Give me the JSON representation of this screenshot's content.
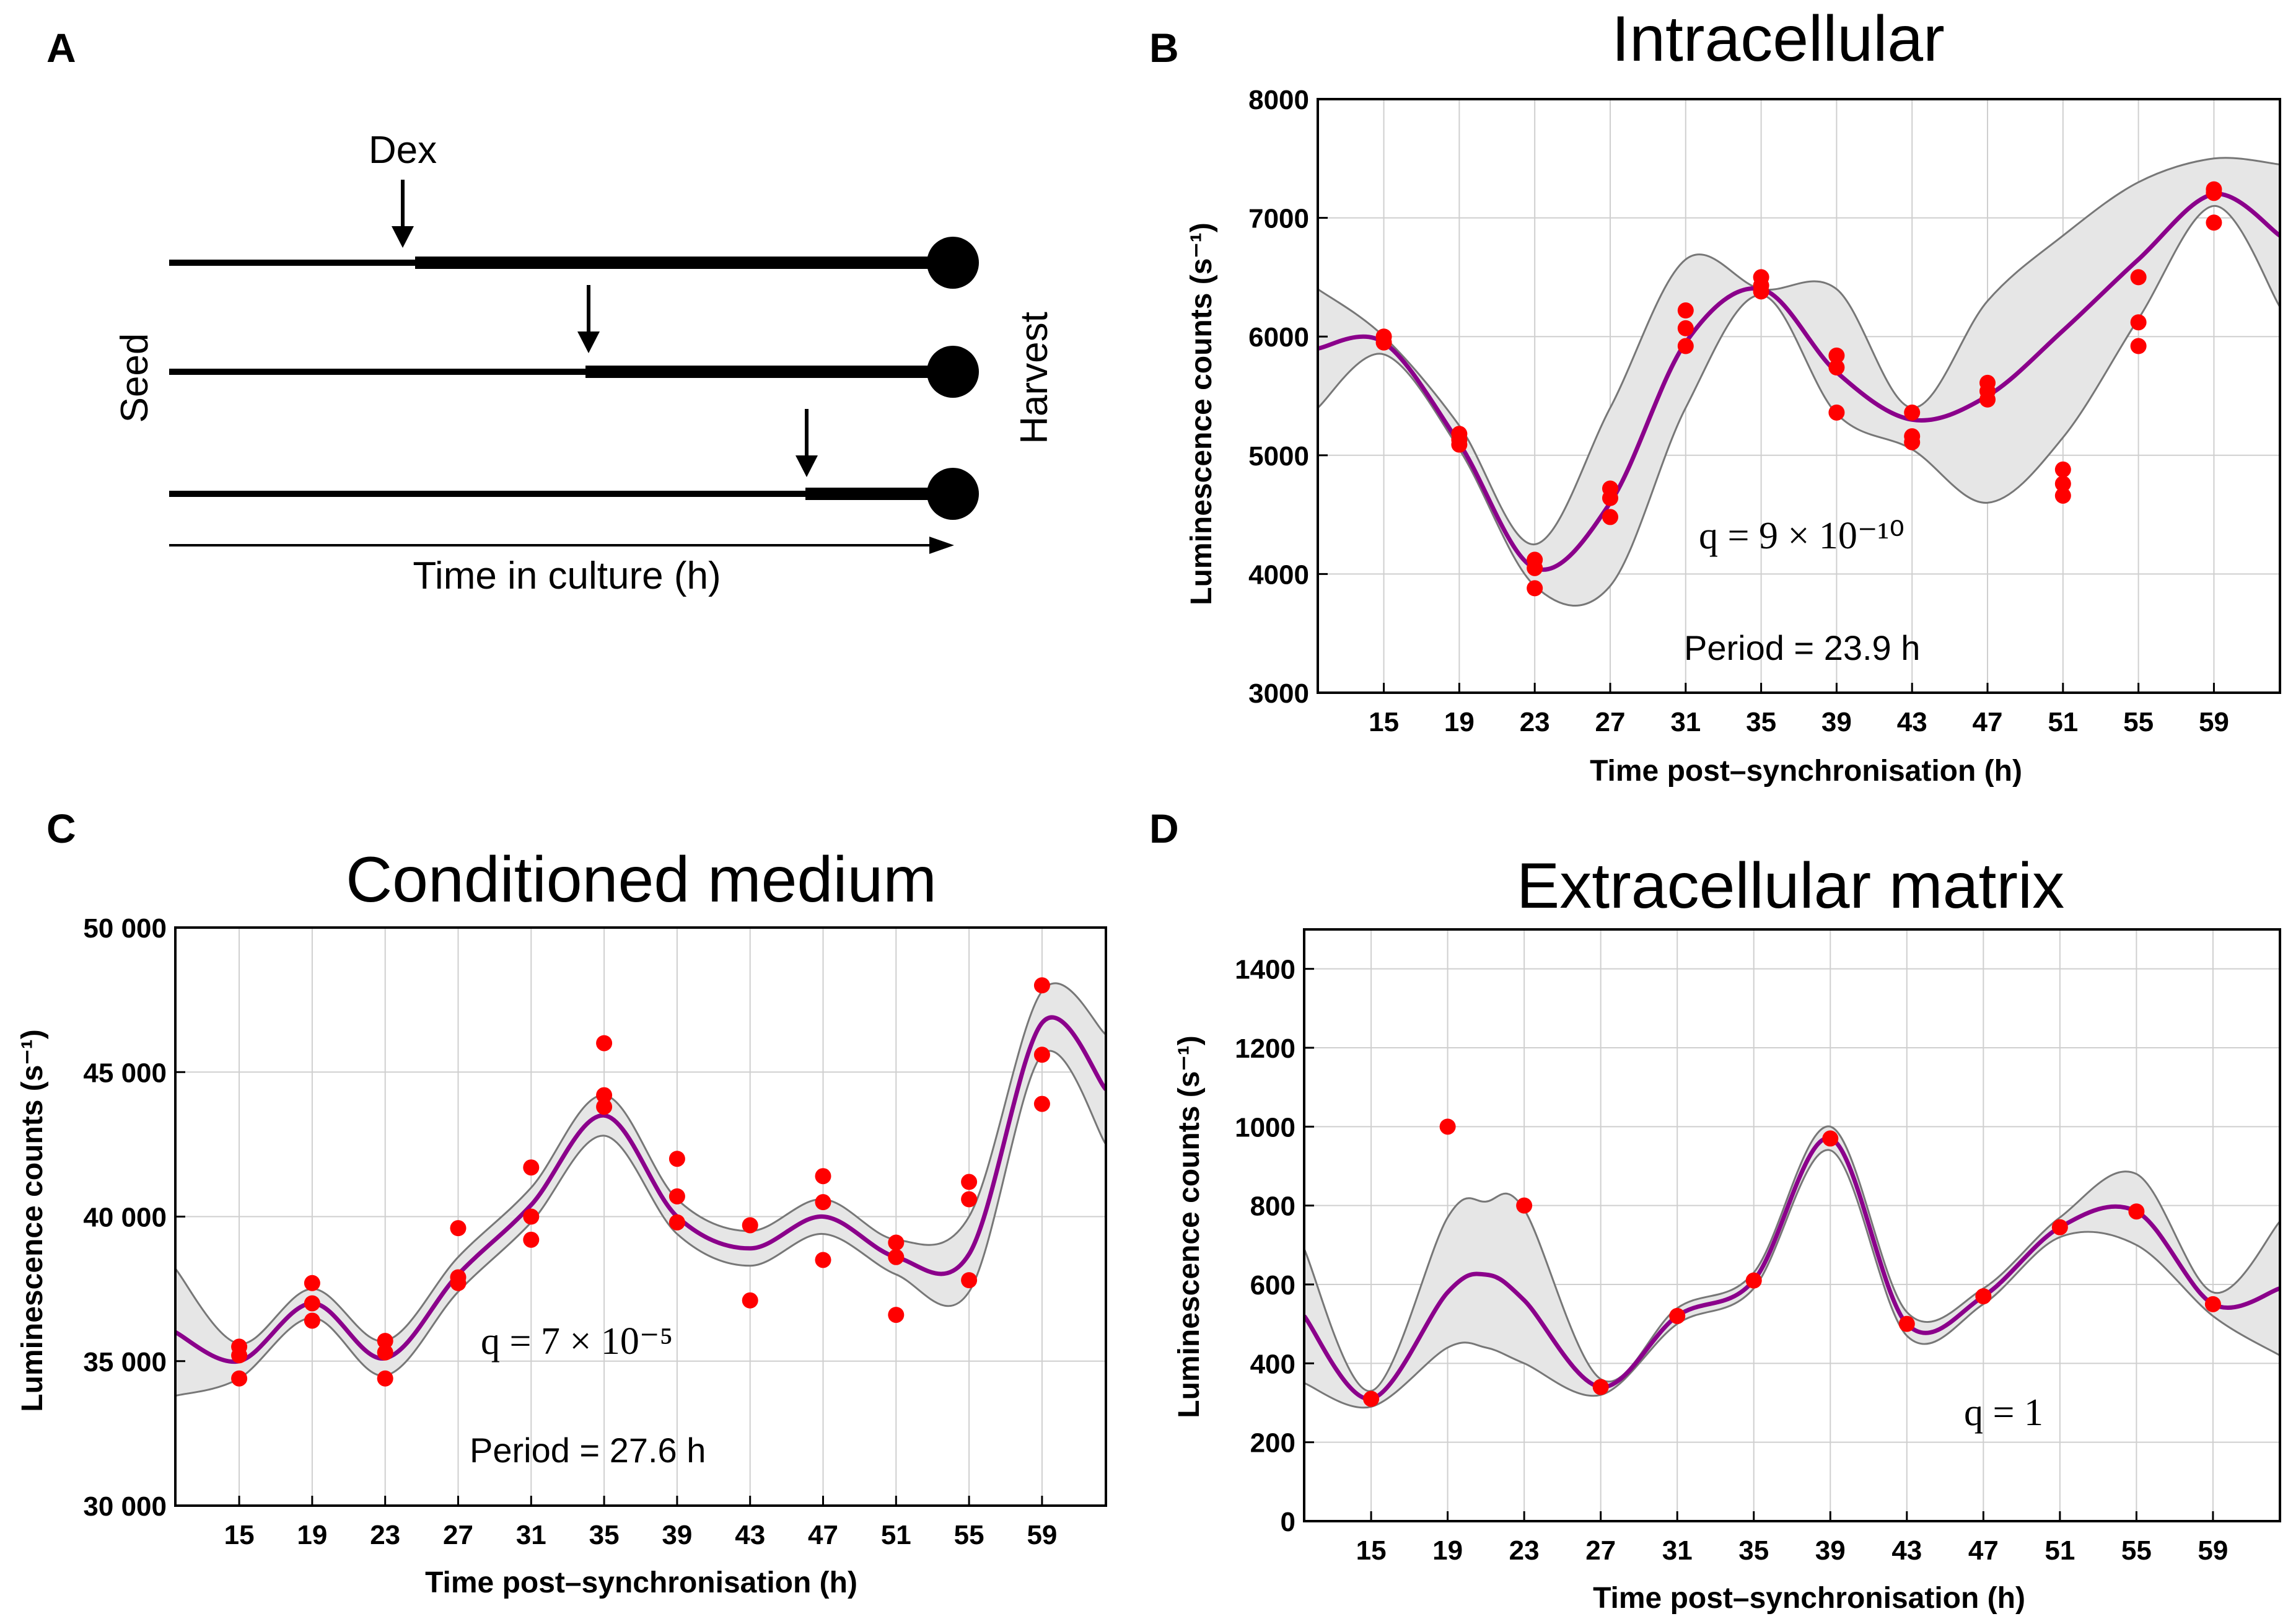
{
  "schematic": {
    "letter": "A",
    "dex_label": "Dex",
    "seed_label": "Seed",
    "harvest_label": "Harvest",
    "time_label": "Time in culture (h)"
  },
  "chart_data": [
    {
      "id": "B",
      "letter": "B",
      "type": "line",
      "title": "Intracellular",
      "xlabel": "Time post–synchronisation (h)",
      "ylabel": "Luminescence counts (s⁻¹)",
      "xlim": [
        11.5,
        62.5
      ],
      "ylim": [
        3000,
        8000
      ],
      "xticks": [
        15,
        19,
        23,
        27,
        31,
        35,
        39,
        43,
        47,
        51,
        55,
        59
      ],
      "yticks": [
        3000,
        4000,
        5000,
        6000,
        7000,
        8000
      ],
      "ytick_labels": [
        "3000",
        "4000",
        "5000",
        "6000",
        "7000",
        "8000"
      ],
      "annotations": [
        "q = 9 × 10⁻¹⁰",
        "Period = 23.9 h"
      ],
      "fit": {
        "x": [
          11.5,
          15,
          19,
          23,
          27,
          31,
          35,
          39,
          43,
          47,
          51,
          55,
          59,
          62.5
        ],
        "y": [
          5900,
          5950,
          5100,
          4050,
          4600,
          5950,
          6400,
          5700,
          5300,
          5500,
          6050,
          6650,
          7200,
          6850
        ]
      },
      "band_upper": [
        6400,
        6000,
        5250,
        4250,
        5400,
        6650,
        6400,
        6400,
        5400,
        6300,
        6850,
        7300,
        7500,
        7450
      ],
      "band_lower": [
        5400,
        5850,
        5050,
        3900,
        3900,
        5400,
        6350,
        5350,
        5050,
        4600,
        5150,
        6150,
        7100,
        6250
      ],
      "points": {
        "x": [
          15,
          15,
          19,
          19,
          19,
          23,
          23,
          23,
          27,
          27,
          27,
          31,
          31,
          31,
          35,
          35,
          35,
          39,
          39,
          39,
          43,
          43,
          43,
          47,
          47,
          47,
          51,
          51,
          51,
          55,
          55,
          55,
          59,
          59,
          59
        ],
        "y": [
          6000,
          5950,
          5180,
          5130,
          5090,
          4120,
          4050,
          3880,
          4720,
          4640,
          4480,
          6220,
          6070,
          5920,
          6500,
          6430,
          6380,
          5840,
          5740,
          5360,
          5360,
          5160,
          5110,
          5610,
          5540,
          5470,
          4880,
          4760,
          4660,
          6500,
          6120,
          5920,
          7240,
          7210,
          6960
        ]
      }
    },
    {
      "id": "C",
      "letter": "C",
      "type": "line",
      "title": "Conditioned medium",
      "xlabel": "Time post–synchronisation (h)",
      "ylabel": "Luminescence counts (s⁻¹)",
      "xlim": [
        11.5,
        62.5
      ],
      "ylim": [
        30000,
        50000
      ],
      "xticks": [
        15,
        19,
        23,
        27,
        31,
        35,
        39,
        43,
        47,
        51,
        55,
        59
      ],
      "yticks": [
        30000,
        35000,
        40000,
        45000,
        50000
      ],
      "ytick_labels": [
        "30 000",
        "35 000",
        "40 000",
        "45 000",
        "50 000"
      ],
      "annotations": [
        "q = 7 × 10⁻⁵",
        "Period = 27.6 h"
      ],
      "fit": {
        "x": [
          11.5,
          15,
          19,
          23,
          27,
          31,
          35,
          39,
          43,
          47,
          51,
          55,
          59,
          62.5
        ],
        "y": [
          36000,
          35000,
          37000,
          35100,
          38000,
          40400,
          43500,
          40000,
          38900,
          40000,
          38600,
          38700,
          46700,
          44400
        ]
      },
      "band_upper": [
        38200,
        35600,
        37500,
        35700,
        38600,
        41000,
        44200,
        40600,
        39500,
        40600,
        39200,
        40000,
        47800,
        46300
      ],
      "band_lower": [
        33800,
        34400,
        36500,
        34500,
        37400,
        39800,
        42800,
        39400,
        38300,
        39400,
        38000,
        37400,
        45600,
        42500
      ],
      "points": {
        "x": [
          15,
          15,
          15,
          19,
          19,
          19,
          23,
          23,
          23,
          27,
          27,
          27,
          31,
          31,
          31,
          35,
          35,
          35,
          39,
          39,
          39,
          43,
          43,
          47,
          47,
          47,
          51,
          51,
          51,
          55,
          55,
          55,
          59,
          59,
          59
        ],
        "y": [
          35500,
          35200,
          34400,
          37700,
          37000,
          36400,
          35700,
          35300,
          34400,
          39600,
          37900,
          37700,
          41700,
          40000,
          39200,
          46000,
          44200,
          43800,
          42000,
          40700,
          39800,
          39700,
          37100,
          41400,
          40500,
          38500,
          39100,
          38600,
          36600,
          41200,
          40600,
          37800,
          48000,
          45600,
          43900
        ]
      }
    },
    {
      "id": "D",
      "letter": "D",
      "type": "line",
      "title": "Extracellular matrix",
      "xlabel": "Time post–synchronisation (h)",
      "ylabel": "Luminescence counts (s⁻¹)",
      "xlim": [
        11.5,
        62.5
      ],
      "ylim": [
        0,
        1500
      ],
      "xticks": [
        15,
        19,
        23,
        27,
        31,
        35,
        39,
        43,
        47,
        51,
        55,
        59
      ],
      "yticks": [
        0,
        200,
        400,
        600,
        800,
        1000,
        1200,
        1400
      ],
      "ytick_labels": [
        "0",
        "200",
        "400",
        "600",
        "800",
        "1000",
        "1200",
        "1400"
      ],
      "annotations": [
        "q = 1"
      ],
      "fit": {
        "x": [
          11.5,
          15,
          19,
          21,
          23,
          27,
          31,
          35,
          39,
          43,
          47,
          51,
          55,
          59,
          62.5
        ],
        "y": [
          520,
          310,
          580,
          625,
          560,
          340,
          520,
          610,
          970,
          500,
          570,
          745,
          785,
          550,
          590
        ]
      },
      "band_upper": [
        690,
        330,
        770,
        810,
        790,
        360,
        540,
        630,
        1000,
        530,
        590,
        770,
        880,
        580,
        760
      ],
      "band_lower": [
        350,
        290,
        440,
        440,
        400,
        320,
        500,
        590,
        940,
        470,
        550,
        720,
        700,
        520,
        420
      ],
      "points": {
        "x": [
          15,
          19,
          23,
          27,
          31,
          35,
          39,
          43,
          47,
          51,
          55,
          59
        ],
        "y": [
          310,
          1000,
          800,
          340,
          520,
          610,
          970,
          500,
          570,
          745,
          785,
          550
        ]
      }
    }
  ]
}
